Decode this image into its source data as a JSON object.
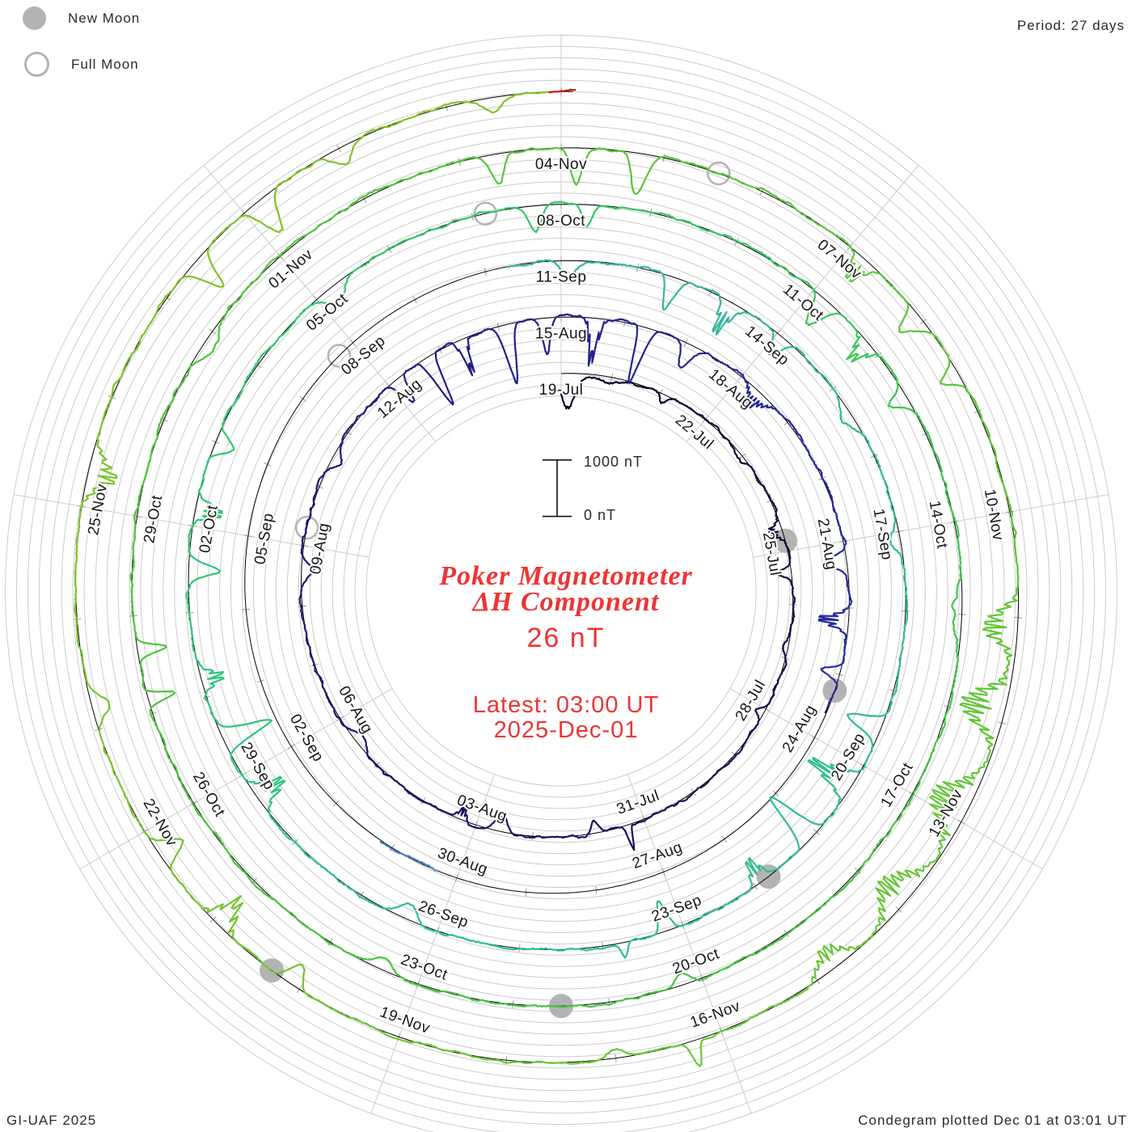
{
  "legend": {
    "new_moon_label": "New Moon",
    "full_moon_label": "Full Moon"
  },
  "header": {
    "period_label": "Period: 27 days"
  },
  "footer": {
    "left": "GI-UAF 2025",
    "right": "Condegram plotted Dec 01 at 03:01 UT"
  },
  "center": {
    "title_line1": "Poker Magnetometer",
    "title_line2": "ΔH Component",
    "current_value": "26 nT",
    "latest_line1": "Latest: 03:00 UT",
    "latest_line2": "2025-Dec-01",
    "accent_color": "#ee3434"
  },
  "scalebar": {
    "top_label": "1000 nT",
    "bottom_label": "0 nT"
  },
  "chart_data": {
    "type": "spiral_polar_condegram",
    "title": "Poker Magnetometer ΔH Component",
    "latest_value_nt": 26,
    "latest_time": "03:00 UT 2025-Dec-01",
    "days_per_ring": 27,
    "nt_per_ring": 1000,
    "gridline_nt": 200,
    "start_label": "19-Jul",
    "end_label": "2025-Dec-01",
    "total_days": 135.125,
    "colors": {
      "grid": "#cbcbcb",
      "baseline": "#000000",
      "tick": "#9a9a9a",
      "moon": "#b3b3b3",
      "date_label": "#161616",
      "gap_sliver": "#4a86c6"
    },
    "color_stops": [
      [
        0,
        "#0d0828"
      ],
      [
        6,
        "#181058"
      ],
      [
        12,
        "#221b80"
      ],
      [
        18,
        "#2a2ba6"
      ],
      [
        24,
        "#3038c0"
      ],
      [
        30,
        "#3550cc"
      ],
      [
        35.6,
        "#3a5ccc"
      ],
      [
        53,
        "#38b2a2"
      ],
      [
        58,
        "#32bb92"
      ],
      [
        63,
        "#2ec47e"
      ],
      [
        68,
        "#36c65e"
      ],
      [
        72,
        "#44c442"
      ],
      [
        78,
        "#4ec43a"
      ],
      [
        84,
        "#5ec636"
      ],
      [
        90,
        "#76c42e"
      ],
      [
        96,
        "#96ba24"
      ],
      [
        102,
        "#b0ac1e"
      ],
      [
        107,
        "#bd9c1e"
      ],
      [
        111,
        "#bb8614"
      ],
      [
        115,
        "#bd7012"
      ],
      [
        119,
        "#bd5e12"
      ],
      [
        123,
        "#c24c12"
      ],
      [
        127,
        "#c93a14"
      ],
      [
        130,
        "#c92818"
      ],
      [
        135.2,
        "#c0150e"
      ]
    ],
    "date_labels": [
      {
        "day": 0,
        "label": "19-Jul"
      },
      {
        "day": 3,
        "label": "22-Jul"
      },
      {
        "day": 6,
        "label": "25-Jul"
      },
      {
        "day": 9,
        "label": "28-Jul"
      },
      {
        "day": 12,
        "label": "31-Jul"
      },
      {
        "day": 15,
        "label": "03-Aug"
      },
      {
        "day": 18,
        "label": "06-Aug"
      },
      {
        "day": 21,
        "label": "09-Aug"
      },
      {
        "day": 24,
        "label": "12-Aug"
      },
      {
        "day": 27,
        "label": "15-Aug"
      },
      {
        "day": 30,
        "label": "18-Aug"
      },
      {
        "day": 33,
        "label": "21-Aug"
      },
      {
        "day": 36,
        "label": "24-Aug"
      },
      {
        "day": 39,
        "label": "27-Aug"
      },
      {
        "day": 42,
        "label": "30-Aug"
      },
      {
        "day": 45,
        "label": "02-Sep"
      },
      {
        "day": 48,
        "label": "05-Sep"
      },
      {
        "day": 51,
        "label": "08-Sep"
      },
      {
        "day": 54,
        "label": "11-Sep"
      },
      {
        "day": 57,
        "label": "14-Sep"
      },
      {
        "day": 60,
        "label": "17-Sep"
      },
      {
        "day": 63,
        "label": "20-Sep"
      },
      {
        "day": 66,
        "label": "23-Sep"
      },
      {
        "day": 69,
        "label": "26-Sep"
      },
      {
        "day": 72,
        "label": "29-Sep"
      },
      {
        "day": 75,
        "label": "02-Oct"
      },
      {
        "day": 78,
        "label": "05-Oct"
      },
      {
        "day": 81,
        "label": "08-Oct"
      },
      {
        "day": 84,
        "label": "11-Oct"
      },
      {
        "day": 87,
        "label": "14-Oct"
      },
      {
        "day": 90,
        "label": "17-Oct"
      },
      {
        "day": 93,
        "label": "20-Oct"
      },
      {
        "day": 96,
        "label": "23-Oct"
      },
      {
        "day": 99,
        "label": "26-Oct"
      },
      {
        "day": 102,
        "label": "29-Oct"
      },
      {
        "day": 105,
        "label": "01-Nov"
      },
      {
        "day": 108,
        "label": "04-Nov"
      },
      {
        "day": 111,
        "label": "07-Nov"
      },
      {
        "day": 114,
        "label": "10-Nov"
      },
      {
        "day": 117,
        "label": "13-Nov"
      },
      {
        "day": 120,
        "label": "16-Nov"
      },
      {
        "day": 123,
        "label": "19-Nov"
      },
      {
        "day": 126,
        "label": "22-Nov"
      },
      {
        "day": 129,
        "label": "25-Nov"
      }
    ],
    "moons": [
      {
        "date": "24-Jul",
        "day": 5.8,
        "phase": "new"
      },
      {
        "date": "23-Aug",
        "day": 35.25,
        "phase": "new"
      },
      {
        "date": "21-Sep",
        "day": 64.8,
        "phase": "new"
      },
      {
        "date": "21-Oct",
        "day": 94.5,
        "phase": "new"
      },
      {
        "date": "20-Nov",
        "day": 124.3,
        "phase": "new"
      },
      {
        "date": "09-Aug",
        "day": 21.3,
        "phase": "full"
      },
      {
        "date": "07-Sep",
        "day": 50.75,
        "phase": "full"
      },
      {
        "date": "07-Oct",
        "day": 80.15,
        "phase": "full"
      },
      {
        "date": "05-Nov",
        "day": 109.55,
        "phase": "full"
      }
    ],
    "data_gaps": [
      [
        35.6,
        42.3
      ],
      [
        43.2,
        53.3
      ]
    ],
    "gap_sliver": {
      "from": 42.3,
      "to": 43.2
    },
    "events_day_amp_width_osc": [
      [
        0.15,
        -680,
        0.22,
        0
      ],
      [
        1.0,
        -140,
        0.3,
        0
      ],
      [
        2.1,
        -160,
        0.12,
        0
      ],
      [
        4.0,
        -120,
        0.2,
        0
      ],
      [
        5.6,
        -220,
        0.18,
        1
      ],
      [
        6.4,
        -260,
        0.1,
        0
      ],
      [
        7.8,
        -120,
        0.15,
        0
      ],
      [
        9.1,
        -150,
        0.12,
        0
      ],
      [
        12.32,
        470,
        0.045,
        0
      ],
      [
        12.9,
        -220,
        0.1,
        0
      ],
      [
        14.6,
        -280,
        0.14,
        0
      ],
      [
        15.3,
        -240,
        0.1,
        1
      ],
      [
        17.5,
        -140,
        0.2,
        0
      ],
      [
        20.6,
        -170,
        0.18,
        0
      ],
      [
        22.5,
        -150,
        0.15,
        0
      ],
      [
        24.15,
        -520,
        0.1,
        0
      ],
      [
        24.75,
        -950,
        0.09,
        0
      ],
      [
        25.35,
        -720,
        0.08,
        1
      ],
      [
        26.1,
        -1150,
        0.1,
        0
      ],
      [
        26.75,
        -650,
        0.09,
        0
      ],
      [
        27.55,
        -850,
        0.1,
        1
      ],
      [
        28.35,
        -1050,
        0.09,
        0
      ],
      [
        29.1,
        -520,
        0.12,
        0
      ],
      [
        30.4,
        -300,
        0.2,
        1
      ],
      [
        33.3,
        -420,
        0.12,
        0
      ],
      [
        34.2,
        -640,
        0.13,
        1
      ],
      [
        35.0,
        -380,
        0.1,
        0
      ],
      [
        54.1,
        -360,
        0.14,
        0
      ],
      [
        55.5,
        -520,
        0.1,
        0
      ],
      [
        56.3,
        -750,
        0.11,
        1
      ],
      [
        57.1,
        -420,
        0.1,
        0
      ],
      [
        58.4,
        -180,
        0.2,
        0
      ],
      [
        60.1,
        -220,
        0.18,
        0
      ],
      [
        62.5,
        -620,
        0.11,
        0
      ],
      [
        63.3,
        -950,
        0.13,
        1
      ],
      [
        64.1,
        -1100,
        0.11,
        0
      ],
      [
        64.9,
        -640,
        0.1,
        1
      ],
      [
        66.2,
        -560,
        0.08,
        0
      ],
      [
        66.75,
        260,
        0.05,
        0
      ],
      [
        69.4,
        -300,
        0.15,
        0
      ],
      [
        71.7,
        -680,
        0.12,
        1
      ],
      [
        72.45,
        -850,
        0.1,
        0
      ],
      [
        73.2,
        -520,
        0.11,
        1
      ],
      [
        74.5,
        -480,
        0.1,
        0
      ],
      [
        75.2,
        -620,
        0.11,
        1
      ],
      [
        76.0,
        -350,
        0.12,
        0
      ],
      [
        78.2,
        -280,
        0.18,
        0
      ],
      [
        80.7,
        -480,
        0.1,
        0
      ],
      [
        81.3,
        -380,
        0.08,
        0
      ],
      [
        84.2,
        -640,
        0.1,
        0
      ],
      [
        84.85,
        -520,
        0.11,
        1
      ],
      [
        85.55,
        -320,
        0.09,
        0
      ],
      [
        88.0,
        -180,
        0.3,
        0
      ],
      [
        93.2,
        -260,
        0.1,
        0
      ],
      [
        96.4,
        -220,
        0.14,
        0
      ],
      [
        100.15,
        -560,
        0.055,
        0
      ],
      [
        100.65,
        -470,
        0.06,
        0
      ],
      [
        103.9,
        -240,
        0.2,
        0
      ],
      [
        107.35,
        -520,
        0.09,
        0
      ],
      [
        108.15,
        -680,
        0.085,
        0
      ],
      [
        108.8,
        -730,
        0.1,
        0
      ],
      [
        111.2,
        -560,
        0.1,
        1
      ],
      [
        111.95,
        -470,
        0.11,
        0
      ],
      [
        112.6,
        -320,
        0.09,
        0
      ],
      [
        115.1,
        -650,
        0.22,
        1
      ],
      [
        115.9,
        -880,
        0.26,
        1
      ],
      [
        116.9,
        -820,
        0.3,
        1
      ],
      [
        117.9,
        -640,
        0.26,
        1
      ],
      [
        118.8,
        -420,
        0.2,
        1
      ],
      [
        120.28,
        500,
        0.05,
        0
      ],
      [
        121.0,
        -220,
        0.1,
        0
      ],
      [
        124.1,
        -480,
        0.1,
        0
      ],
      [
        124.95,
        -660,
        0.12,
        1
      ],
      [
        125.75,
        -420,
        0.1,
        0
      ],
      [
        127.2,
        -360,
        0.14,
        0
      ],
      [
        129.3,
        -560,
        0.18,
        1
      ],
      [
        131.4,
        -620,
        0.09,
        0
      ],
      [
        132.15,
        -680,
        0.11,
        0
      ],
      [
        133.0,
        -320,
        0.13,
        0
      ],
      [
        134.4,
        -260,
        0.12,
        0
      ]
    ]
  }
}
